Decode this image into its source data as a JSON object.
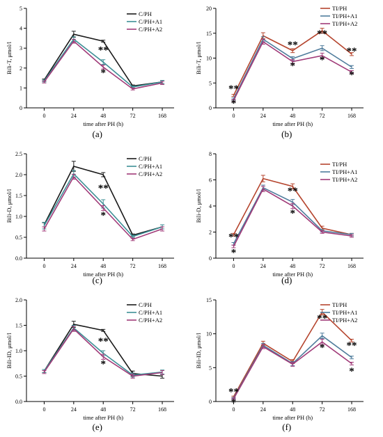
{
  "figure": {
    "x_tick_labels": [
      "0",
      "24",
      "48",
      "72",
      "168"
    ]
  },
  "chart_data": [
    {
      "panel": "(a)",
      "type": "line",
      "xlabel": "time after PH (h)",
      "ylabel": "Bili-T, μmol/l",
      "categories": [
        "0",
        "24",
        "48",
        "72",
        "168"
      ],
      "ylim": [
        0,
        5
      ],
      "yticks": [
        "0",
        "1",
        "2",
        "3",
        "4",
        "5"
      ],
      "legend_position": "top-right",
      "series": [
        {
          "name": "C/PH",
          "color": "#1a1a1a",
          "values": [
            1.4,
            3.7,
            3.35,
            1.1,
            1.3
          ],
          "errors": [
            0.05,
            0.15,
            0.05,
            0.05,
            0.08
          ]
        },
        {
          "name": "C/PH+A1",
          "color": "#3d8f96",
          "values": [
            1.35,
            3.45,
            2.3,
            1.05,
            1.3
          ],
          "errors": [
            0.05,
            0.12,
            0.12,
            0.05,
            0.08
          ]
        },
        {
          "name": "C/PH+A2",
          "color": "#a03a78",
          "values": [
            1.3,
            3.35,
            2.05,
            0.95,
            1.25
          ],
          "errors": [
            0.05,
            0.1,
            0.1,
            0.05,
            0.08
          ]
        }
      ],
      "annotations": [
        {
          "x": "48",
          "y": 2.75,
          "text": "**"
        },
        {
          "x": "48",
          "y": 1.6,
          "text": "*"
        }
      ]
    },
    {
      "panel": "(b)",
      "type": "line",
      "xlabel": "time after PH (h)",
      "ylabel": "Bili-T, μmol/l",
      "categories": [
        "0",
        "24",
        "48",
        "72",
        "168"
      ],
      "ylim": [
        0,
        20
      ],
      "yticks": [
        "0",
        "5",
        "10",
        "15",
        "20"
      ],
      "legend_position": "top-right",
      "series": [
        {
          "name": "TI/PH",
          "color": "#b5452e",
          "values": [
            2.5,
            14.5,
            11.5,
            15.5,
            10.8
          ],
          "errors": [
            0.2,
            0.6,
            0.4,
            0.5,
            0.3
          ]
        },
        {
          "name": "TI/PH+A1",
          "color": "#4f7c9c",
          "values": [
            1.8,
            13.8,
            9.9,
            12.0,
            8.2
          ],
          "errors": [
            0.2,
            0.5,
            0.4,
            0.5,
            0.3
          ]
        },
        {
          "name": "TI/PH+A2",
          "color": "#a03a78",
          "values": [
            1.5,
            13.3,
            9.3,
            10.5,
            7.2
          ],
          "errors": [
            0.2,
            0.5,
            0.4,
            0.5,
            0.3
          ]
        }
      ],
      "annotations": [
        {
          "x": "0",
          "y": 3.2,
          "text": "**"
        },
        {
          "x": "0",
          "y": 0.3,
          "text": "*"
        },
        {
          "x": "48",
          "y": 12.0,
          "text": "**"
        },
        {
          "x": "48",
          "y": 7.8,
          "text": "*"
        },
        {
          "x": "72",
          "y": 14.3,
          "text": "**"
        },
        {
          "x": "72",
          "y": 9.0,
          "text": "*"
        },
        {
          "x": "168",
          "y": 10.8,
          "text": "**"
        },
        {
          "x": "168",
          "y": 6.0,
          "text": "*"
        }
      ]
    },
    {
      "panel": "(c)",
      "type": "line",
      "xlabel": "time after PH (h)",
      "ylabel": "Bili-D, μmol/l",
      "categories": [
        "0",
        "24",
        "48",
        "72",
        "168"
      ],
      "ylim": [
        0,
        2.5
      ],
      "yticks": [
        "0.0",
        "0.5",
        "1.0",
        "1.5",
        "2.0",
        "2.5"
      ],
      "legend_position": "top-right",
      "series": [
        {
          "name": "C/PH",
          "color": "#1a1a1a",
          "values": [
            0.8,
            2.2,
            2.0,
            0.55,
            0.75
          ],
          "errors": [
            0.05,
            0.12,
            0.05,
            0.03,
            0.05
          ]
        },
        {
          "name": "C/PH+A1",
          "color": "#3d8f96",
          "values": [
            0.78,
            2.02,
            1.3,
            0.52,
            0.75
          ],
          "errors": [
            0.08,
            0.08,
            0.1,
            0.03,
            0.05
          ]
        },
        {
          "name": "C/PH+A2",
          "color": "#a03a78",
          "values": [
            0.7,
            1.95,
            1.2,
            0.45,
            0.7
          ],
          "errors": [
            0.05,
            0.06,
            0.06,
            0.03,
            0.05
          ]
        }
      ],
      "annotations": [
        {
          "x": "48",
          "y": 1.6,
          "text": "**"
        },
        {
          "x": "48",
          "y": 0.95,
          "text": "*"
        }
      ]
    },
    {
      "panel": "(d)",
      "type": "line",
      "xlabel": "time after PH (h)",
      "ylabel": "Bili-D, μmol/l",
      "categories": [
        "0",
        "24",
        "48",
        "72",
        "168"
      ],
      "ylim": [
        0,
        8
      ],
      "yticks": [
        "0",
        "2",
        "4",
        "6",
        "8"
      ],
      "legend_position": "top-right",
      "series": [
        {
          "name": "TI/PH",
          "color": "#b5452e",
          "values": [
            1.8,
            6.1,
            5.5,
            2.3,
            1.8
          ],
          "errors": [
            0.1,
            0.25,
            0.2,
            0.15,
            0.1
          ]
        },
        {
          "name": "TI/PH+A1",
          "color": "#4f7c9c",
          "values": [
            1.1,
            5.4,
            4.3,
            2.1,
            1.8
          ],
          "errors": [
            0.1,
            0.2,
            0.2,
            0.1,
            0.1
          ]
        },
        {
          "name": "TI/PH+A2",
          "color": "#a03a78",
          "values": [
            0.9,
            5.3,
            4.0,
            2.0,
            1.7
          ],
          "errors": [
            0.1,
            0.2,
            0.2,
            0.1,
            0.1
          ]
        }
      ],
      "annotations": [
        {
          "x": "0",
          "y": 1.4,
          "text": "**"
        },
        {
          "x": "0",
          "y": 0.2,
          "text": "*"
        },
        {
          "x": "48",
          "y": 4.9,
          "text": "**"
        },
        {
          "x": "48",
          "y": 3.2,
          "text": "*"
        }
      ]
    },
    {
      "panel": "(e)",
      "type": "line",
      "xlabel": "time after PH (h)",
      "ylabel": "Bili-ID, μmol/l",
      "categories": [
        "0",
        "24",
        "48",
        "72",
        "168"
      ],
      "ylim": [
        0,
        2.0
      ],
      "yticks": [
        "0.0",
        "0.5",
        "1.0",
        "1.5",
        "2.0"
      ],
      "legend_position": "top-right",
      "series": [
        {
          "name": "C/PH",
          "color": "#1a1a1a",
          "values": [
            0.6,
            1.52,
            1.4,
            0.55,
            0.5
          ],
          "errors": [
            0.03,
            0.06,
            0.02,
            0.05,
            0.04
          ]
        },
        {
          "name": "C/PH+A1",
          "color": "#3d8f96",
          "values": [
            0.6,
            1.45,
            0.95,
            0.52,
            0.58
          ],
          "errors": [
            0.03,
            0.05,
            0.05,
            0.04,
            0.04
          ]
        },
        {
          "name": "C/PH+A2",
          "color": "#a03a78",
          "values": [
            0.58,
            1.43,
            0.88,
            0.5,
            0.57
          ],
          "errors": [
            0.03,
            0.05,
            0.05,
            0.04,
            0.04
          ]
        }
      ],
      "annotations": [
        {
          "x": "48",
          "y": 1.12,
          "text": "**"
        },
        {
          "x": "48",
          "y": 0.68,
          "text": "*"
        }
      ]
    },
    {
      "panel": "(f)",
      "type": "line",
      "xlabel": "time after PH (h)",
      "ylabel": "Bili-ID, μmol/l",
      "categories": [
        "0",
        "24",
        "48",
        "72",
        "168"
      ],
      "ylim": [
        0,
        15
      ],
      "yticks": [
        "0",
        "5",
        "10",
        "15"
      ],
      "legend_position": "top-right",
      "series": [
        {
          "name": "TI/PH",
          "color": "#b5452e",
          "values": [
            0.7,
            8.6,
            5.9,
            13.2,
            9.0
          ],
          "errors": [
            0.1,
            0.3,
            0.3,
            0.4,
            0.2
          ]
        },
        {
          "name": "TI/PH+A1",
          "color": "#4f7c9c",
          "values": [
            0.5,
            8.3,
            5.6,
            9.7,
            6.5
          ],
          "errors": [
            0.1,
            0.3,
            0.3,
            0.4,
            0.2
          ]
        },
        {
          "name": "TI/PH+A2",
          "color": "#a03a78",
          "values": [
            0.4,
            8.1,
            5.5,
            8.8,
            5.6
          ],
          "errors": [
            0.1,
            0.3,
            0.3,
            0.4,
            0.2
          ]
        }
      ],
      "annotations": [
        {
          "x": "0",
          "y": 1.0,
          "text": "**"
        },
        {
          "x": "0",
          "y": -0.6,
          "text": "*"
        },
        {
          "x": "72",
          "y": 11.8,
          "text": "**"
        },
        {
          "x": "72",
          "y": 7.5,
          "text": "*"
        },
        {
          "x": "168",
          "y": 7.8,
          "text": "**"
        },
        {
          "x": "168",
          "y": 4.0,
          "text": "*"
        }
      ]
    }
  ]
}
